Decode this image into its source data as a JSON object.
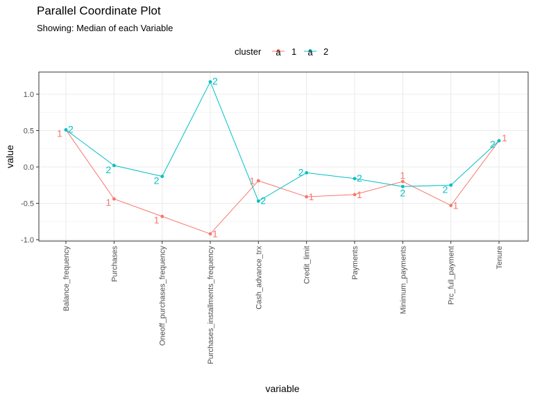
{
  "title": "Parallel Coordinate Plot",
  "subtitle": "Showing: Median of each Variable",
  "legend": {
    "title": "cluster",
    "key_glyph": "a",
    "position": "top"
  },
  "colors": {
    "1": "#f8766d",
    "2": "#00bfc4",
    "grid": "#ebebeb",
    "panel_border": "#333333"
  },
  "chart_data": {
    "type": "line",
    "xlabel": "variable",
    "ylabel": "value",
    "ylim": [
      -1.0,
      1.2
    ],
    "yticks": [
      "-1.0",
      "-0.5",
      "0.0",
      "0.5",
      "1.0"
    ],
    "ytick_values": [
      -1.0,
      -0.5,
      0.0,
      0.5,
      1.0
    ],
    "grid": true,
    "categories": [
      "Balance_frequency",
      "Purchases",
      "Oneoff_purchases_frequency",
      "Purchases_installments_frequency",
      "Cash_advance_trx",
      "Credit_limit",
      "Payments",
      "Minimum_payments",
      "Prc_full_payment",
      "Tenure"
    ],
    "series": [
      {
        "name": "1",
        "values": [
          0.51,
          -0.44,
          -0.68,
          -0.92,
          -0.19,
          -0.41,
          -0.38,
          -0.2,
          -0.53,
          0.36
        ]
      },
      {
        "name": "2",
        "values": [
          0.51,
          0.02,
          -0.13,
          1.17,
          -0.47,
          -0.08,
          -0.16,
          -0.27,
          -0.25,
          0.36
        ]
      }
    ]
  }
}
